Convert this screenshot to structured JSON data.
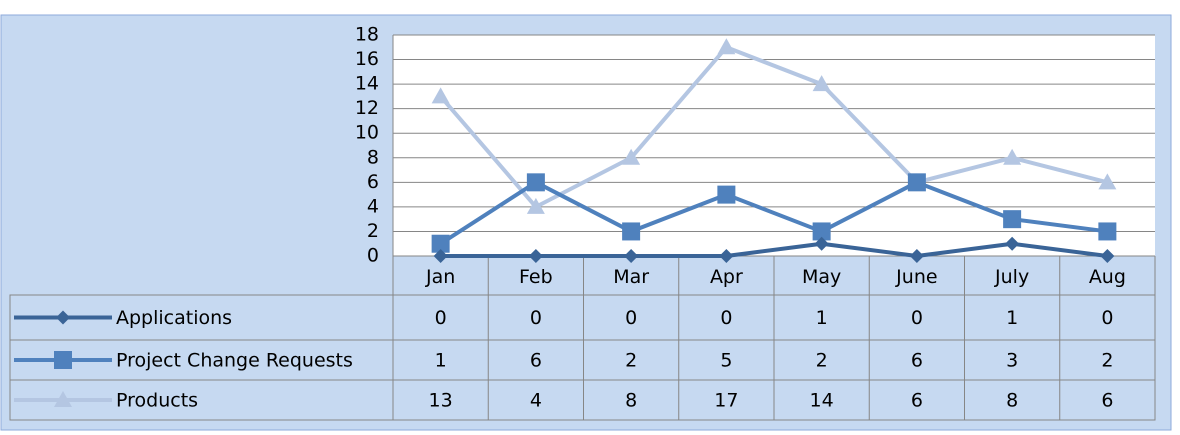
{
  "chart_data": {
    "type": "line",
    "categories": [
      "Jan",
      "Feb",
      "Mar",
      "Apr",
      "May",
      "June",
      "July",
      "Aug"
    ],
    "series": [
      {
        "name": "Applications",
        "color": "#3a6497",
        "marker": "diamond",
        "values": [
          0,
          0,
          0,
          0,
          1,
          0,
          1,
          0
        ]
      },
      {
        "name": "Project Change Requests",
        "color": "#4f81bd",
        "marker": "square",
        "values": [
          1,
          6,
          2,
          5,
          2,
          6,
          3,
          2
        ]
      },
      {
        "name": "Products",
        "color": "#b4c6e2",
        "marker": "triangle",
        "values": [
          13,
          4,
          8,
          17,
          14,
          6,
          8,
          6
        ]
      }
    ],
    "ylim": [
      0,
      18
    ],
    "yticks": [
      0,
      2,
      4,
      6,
      8,
      10,
      12,
      14,
      16,
      18
    ],
    "grid": true,
    "data_table": true
  }
}
